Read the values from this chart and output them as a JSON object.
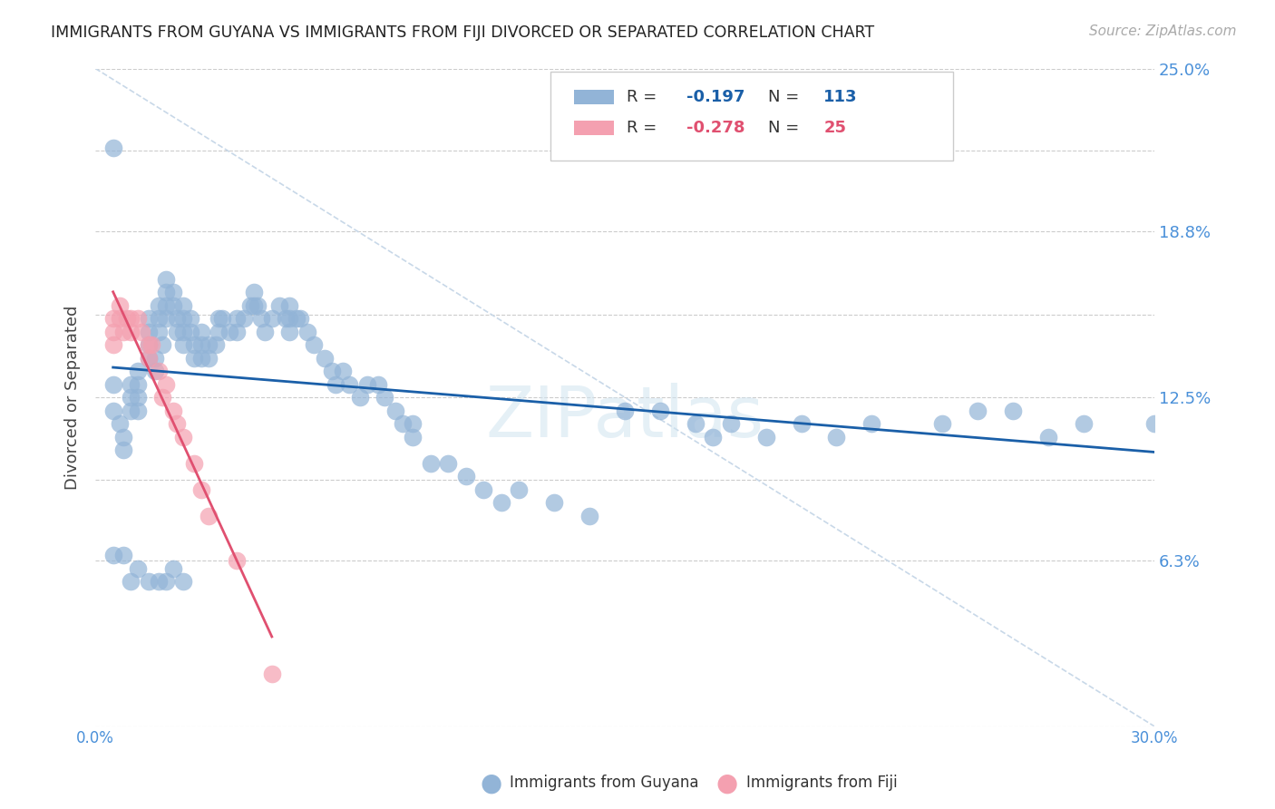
{
  "title": "IMMIGRANTS FROM GUYANA VS IMMIGRANTS FROM FIJI DIVORCED OR SEPARATED CORRELATION CHART",
  "source": "Source: ZipAtlas.com",
  "ylabel": "Divorced or Separated",
  "xlim": [
    0.0,
    0.3
  ],
  "ylim": [
    0.0,
    0.25
  ],
  "ytick_values": [
    0.0,
    0.063,
    0.0938,
    0.125,
    0.1563,
    0.188,
    0.2188,
    0.25
  ],
  "ytick_labels": [
    "",
    "6.3%",
    "",
    "12.5%",
    "",
    "18.8%",
    "",
    "25.0%"
  ],
  "xtick_values": [
    0.0,
    0.06,
    0.12,
    0.18,
    0.24,
    0.3
  ],
  "xtick_labels": [
    "0.0%",
    "",
    "",
    "",
    "",
    "30.0%"
  ],
  "legend_guyana": "Immigrants from Guyana",
  "legend_fiji": "Immigrants from Fiji",
  "r_guyana": -0.197,
  "n_guyana": 113,
  "r_fiji": -0.278,
  "n_fiji": 25,
  "color_guyana": "#92b4d7",
  "color_fiji": "#f4a0b0",
  "line_color_guyana": "#1a5fa8",
  "line_color_fiji": "#e05070",
  "line_color_dashed": "#c8d8e8",
  "watermark": "ZIPatlas",
  "guyana_x": [
    0.005,
    0.005,
    0.007,
    0.008,
    0.008,
    0.01,
    0.01,
    0.01,
    0.012,
    0.012,
    0.012,
    0.012,
    0.015,
    0.015,
    0.015,
    0.015,
    0.017,
    0.017,
    0.018,
    0.018,
    0.018,
    0.019,
    0.02,
    0.02,
    0.02,
    0.02,
    0.022,
    0.022,
    0.023,
    0.023,
    0.025,
    0.025,
    0.025,
    0.025,
    0.027,
    0.027,
    0.028,
    0.028,
    0.03,
    0.03,
    0.03,
    0.032,
    0.032,
    0.034,
    0.035,
    0.035,
    0.036,
    0.038,
    0.04,
    0.04,
    0.042,
    0.044,
    0.045,
    0.045,
    0.046,
    0.047,
    0.048,
    0.05,
    0.052,
    0.054,
    0.055,
    0.055,
    0.055,
    0.057,
    0.058,
    0.06,
    0.062,
    0.065,
    0.067,
    0.068,
    0.07,
    0.072,
    0.075,
    0.077,
    0.08,
    0.082,
    0.085,
    0.087,
    0.09,
    0.09,
    0.095,
    0.1,
    0.105,
    0.11,
    0.115,
    0.12,
    0.13,
    0.14,
    0.15,
    0.16,
    0.17,
    0.175,
    0.18,
    0.19,
    0.2,
    0.21,
    0.22,
    0.24,
    0.25,
    0.26,
    0.27,
    0.28,
    0.3,
    0.005,
    0.005,
    0.008,
    0.01,
    0.012,
    0.015,
    0.018,
    0.02,
    0.022,
    0.025
  ],
  "guyana_y": [
    0.13,
    0.12,
    0.115,
    0.11,
    0.105,
    0.13,
    0.125,
    0.12,
    0.135,
    0.13,
    0.125,
    0.12,
    0.155,
    0.15,
    0.145,
    0.14,
    0.14,
    0.135,
    0.16,
    0.155,
    0.15,
    0.145,
    0.17,
    0.165,
    0.16,
    0.155,
    0.165,
    0.16,
    0.155,
    0.15,
    0.16,
    0.155,
    0.15,
    0.145,
    0.155,
    0.15,
    0.145,
    0.14,
    0.15,
    0.145,
    0.14,
    0.145,
    0.14,
    0.145,
    0.155,
    0.15,
    0.155,
    0.15,
    0.155,
    0.15,
    0.155,
    0.16,
    0.165,
    0.16,
    0.16,
    0.155,
    0.15,
    0.155,
    0.16,
    0.155,
    0.16,
    0.155,
    0.15,
    0.155,
    0.155,
    0.15,
    0.145,
    0.14,
    0.135,
    0.13,
    0.135,
    0.13,
    0.125,
    0.13,
    0.13,
    0.125,
    0.12,
    0.115,
    0.115,
    0.11,
    0.1,
    0.1,
    0.095,
    0.09,
    0.085,
    0.09,
    0.085,
    0.08,
    0.12,
    0.12,
    0.115,
    0.11,
    0.115,
    0.11,
    0.115,
    0.11,
    0.115,
    0.115,
    0.12,
    0.12,
    0.11,
    0.115,
    0.115,
    0.22,
    0.065,
    0.065,
    0.055,
    0.06,
    0.055,
    0.055,
    0.055,
    0.06,
    0.055
  ],
  "fiji_x": [
    0.005,
    0.005,
    0.005,
    0.007,
    0.007,
    0.008,
    0.009,
    0.01,
    0.01,
    0.012,
    0.013,
    0.015,
    0.015,
    0.016,
    0.018,
    0.019,
    0.02,
    0.022,
    0.023,
    0.025,
    0.028,
    0.03,
    0.032,
    0.04,
    0.05
  ],
  "fiji_y": [
    0.155,
    0.15,
    0.145,
    0.16,
    0.155,
    0.15,
    0.155,
    0.155,
    0.15,
    0.155,
    0.15,
    0.145,
    0.14,
    0.145,
    0.135,
    0.125,
    0.13,
    0.12,
    0.115,
    0.11,
    0.1,
    0.09,
    0.08,
    0.063,
    0.02
  ]
}
